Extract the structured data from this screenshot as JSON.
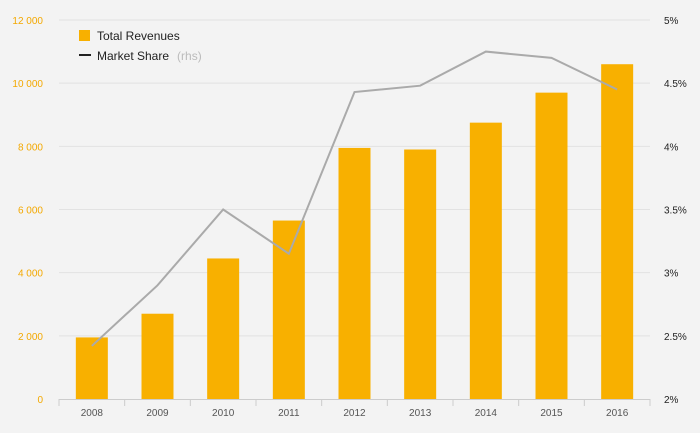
{
  "chart_data": {
    "type": "bar+line",
    "categories": [
      "2008",
      "2009",
      "2010",
      "2011",
      "2012",
      "2013",
      "2014",
      "2015",
      "2016"
    ],
    "series": [
      {
        "name": "Total Revenues",
        "type": "bar",
        "axis": "left",
        "color": "#f8b000",
        "values": [
          1950,
          2700,
          4450,
          5650,
          7950,
          7900,
          8750,
          9700,
          10600
        ]
      },
      {
        "name": "Market Share",
        "type": "line",
        "axis": "right",
        "color": "#aaaaaa",
        "values": [
          2.42,
          2.9,
          3.5,
          3.15,
          4.43,
          4.48,
          4.75,
          4.7,
          4.45
        ]
      }
    ],
    "left_axis": {
      "range": [
        0,
        12000
      ],
      "ticks": [
        0,
        2000,
        4000,
        6000,
        8000,
        10000,
        12000
      ],
      "tick_labels": [
        "0",
        "2 000",
        "4 000",
        "6 000",
        "8 000",
        "10 000",
        "12 000"
      ],
      "color": "#f3a800"
    },
    "right_axis": {
      "range": [
        2,
        5
      ],
      "ticks": [
        2,
        2.5,
        3,
        3.5,
        4,
        4.5,
        5
      ],
      "tick_labels": [
        "2%",
        "2.5%",
        "3%",
        "3.5%",
        "4%",
        "4.5%",
        "5%"
      ]
    },
    "legend": {
      "position": "top-left",
      "items": [
        {
          "label": "Total Revenues",
          "marker": "square",
          "color": "#f8b000"
        },
        {
          "label": "Market Share",
          "note": "(rhs)",
          "marker": "line",
          "color": "#222222"
        }
      ]
    },
    "grid": true,
    "title": "",
    "xlabel": "",
    "ylabel": ""
  }
}
